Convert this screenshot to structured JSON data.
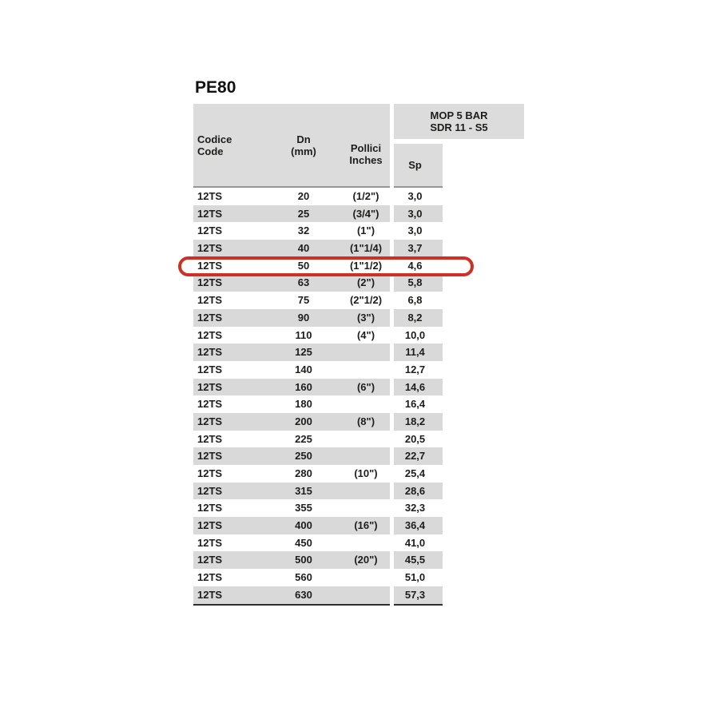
{
  "title": "PE80",
  "table": {
    "header": {
      "code_line1": "Codice",
      "code_line2": "Code",
      "dn_line1": "Dn",
      "dn_line2": "(mm)",
      "inches_line1": "Pollici",
      "inches_line2": "Inches",
      "mop_line1": "MOP 5 BAR",
      "mop_line2": "SDR 11 - S5",
      "sp": "Sp"
    },
    "rows": [
      {
        "code": "12TS",
        "dn": "20",
        "inches": "(1/2\")",
        "sp": "3,0"
      },
      {
        "code": "12TS",
        "dn": "25",
        "inches": "(3/4\")",
        "sp": "3,0"
      },
      {
        "code": "12TS",
        "dn": "32",
        "inches": "(1\")",
        "sp": "3,0"
      },
      {
        "code": "12TS",
        "dn": "40",
        "inches": "(1\"1/4)",
        "sp": "3,7"
      },
      {
        "code": "12TS",
        "dn": "50",
        "inches": "(1\"1/2)",
        "sp": "4,6"
      },
      {
        "code": "12TS",
        "dn": "63",
        "inches": "(2\")",
        "sp": "5,8"
      },
      {
        "code": "12TS",
        "dn": "75",
        "inches": "(2\"1/2)",
        "sp": "6,8"
      },
      {
        "code": "12TS",
        "dn": "90",
        "inches": "(3\")",
        "sp": "8,2"
      },
      {
        "code": "12TS",
        "dn": "110",
        "inches": "(4\")",
        "sp": "10,0"
      },
      {
        "code": "12TS",
        "dn": "125",
        "inches": "",
        "sp": "11,4"
      },
      {
        "code": "12TS",
        "dn": "140",
        "inches": "",
        "sp": "12,7"
      },
      {
        "code": "12TS",
        "dn": "160",
        "inches": "(6\")",
        "sp": "14,6"
      },
      {
        "code": "12TS",
        "dn": "180",
        "inches": "",
        "sp": "16,4"
      },
      {
        "code": "12TS",
        "dn": "200",
        "inches": "(8\")",
        "sp": "18,2"
      },
      {
        "code": "12TS",
        "dn": "225",
        "inches": "",
        "sp": "20,5"
      },
      {
        "code": "12TS",
        "dn": "250",
        "inches": "",
        "sp": "22,7"
      },
      {
        "code": "12TS",
        "dn": "280",
        "inches": "(10\")",
        "sp": "25,4"
      },
      {
        "code": "12TS",
        "dn": "315",
        "inches": "",
        "sp": "28,6"
      },
      {
        "code": "12TS",
        "dn": "355",
        "inches": "",
        "sp": "32,3"
      },
      {
        "code": "12TS",
        "dn": "400",
        "inches": "(16\")",
        "sp": "36,4"
      },
      {
        "code": "12TS",
        "dn": "450",
        "inches": "",
        "sp": "41,0"
      },
      {
        "code": "12TS",
        "dn": "500",
        "inches": "(20\")",
        "sp": "45,5"
      },
      {
        "code": "12TS",
        "dn": "560",
        "inches": "",
        "sp": "51,0"
      },
      {
        "code": "12TS",
        "dn": "630",
        "inches": "",
        "sp": "57,3"
      }
    ],
    "highlighted_row_dn": "50"
  },
  "colors": {
    "header_bg": "#dcdcdc",
    "row_stripe": "#d9d9d9",
    "highlight_red": "#cd3126",
    "text": "#1d1d1b"
  }
}
